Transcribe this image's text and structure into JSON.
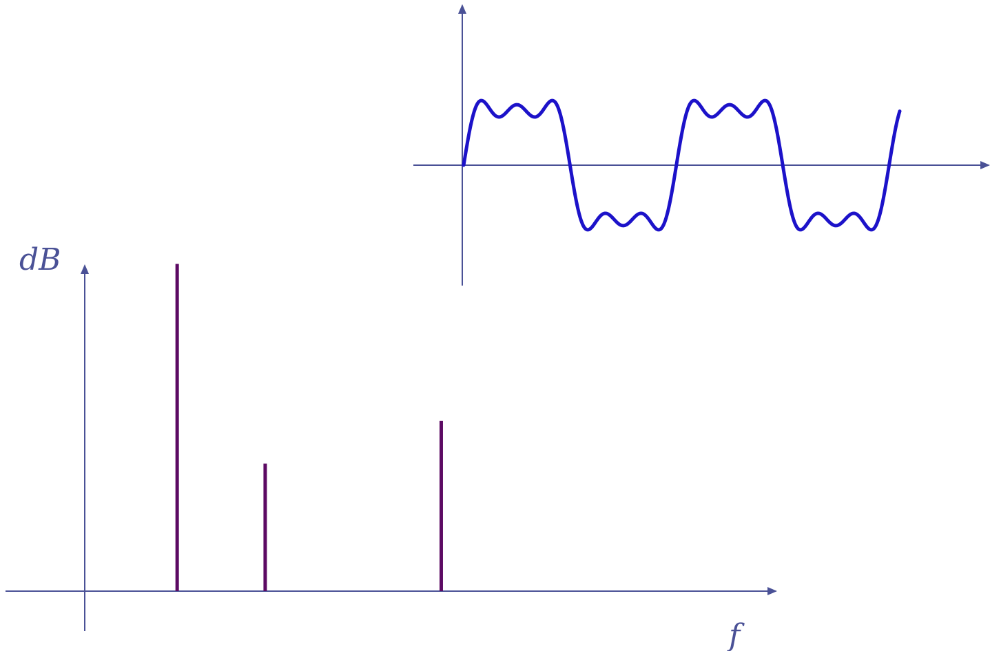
{
  "colors": {
    "axis": "#4a5196",
    "spectral_line": "#5c0a63",
    "waveform": "#1c12c9"
  },
  "chart_data": [
    {
      "type": "bar",
      "title": "",
      "xlabel": "f",
      "ylabel": "dB",
      "x": [
        1,
        2,
        4
      ],
      "values": [
        1.0,
        0.39,
        0.52
      ],
      "xlim": [
        -0.95,
        7.8
      ],
      "ylim": [
        0,
        1.1
      ],
      "grid": false
    },
    {
      "type": "line",
      "title": "",
      "xlabel": "",
      "ylabel": "",
      "series": [
        {
          "harmonics": [
            1,
            3,
            5
          ],
          "amplitudes": [
            1.0,
            0.33,
            0.2
          ],
          "periods": 2.05
        }
      ],
      "grid": false
    }
  ]
}
